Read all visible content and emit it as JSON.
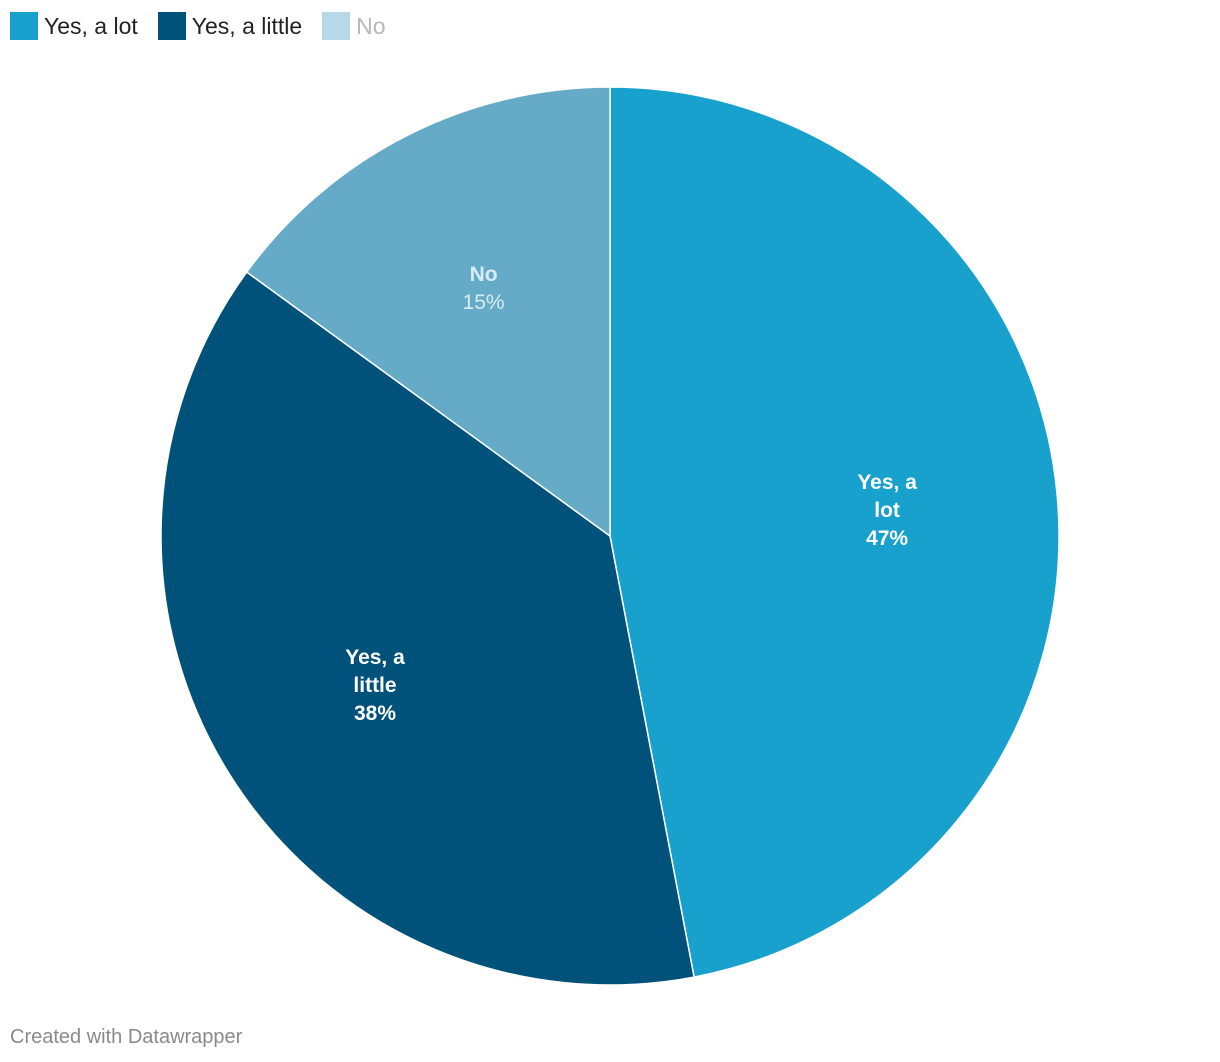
{
  "chart_data": {
    "type": "pie",
    "slices": [
      {
        "label": "Yes, a lot",
        "chart_label_lines": [
          "Yes, a",
          "lot"
        ],
        "value": 47,
        "value_text": "47%",
        "color": "#18a1cd",
        "legend_color": "#18a1cd",
        "text_color": "#ffffff",
        "muted": false
      },
      {
        "label": "Yes, a little",
        "chart_label_lines": [
          "Yes, a",
          "little"
        ],
        "value": 38,
        "value_text": "38%",
        "color": "#00527a",
        "legend_color": "#00527a",
        "text_color": "#ffffff",
        "muted": false
      },
      {
        "label": "No",
        "chart_label_lines": [
          "No"
        ],
        "value": 15,
        "value_text": "15%",
        "color": "#65abc7",
        "legend_color": "#b7d9e7",
        "text_color": "#d8ecf4",
        "muted": true
      }
    ],
    "legend_placement": "top-left"
  },
  "footer": {
    "credit": "Created with Datawrapper"
  }
}
